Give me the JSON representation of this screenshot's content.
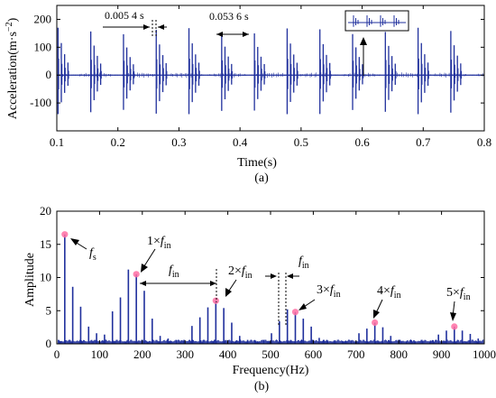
{
  "colors": {
    "signal": "#1f2f9c",
    "marker": "#ff6fa3",
    "axis": "#000000"
  },
  "panel_a": {
    "caption": "(a)",
    "annotations": {
      "interval_short": "0.005 4 s",
      "interval_long": "0.053 6 s"
    }
  },
  "panel_b": {
    "caption": "(b)",
    "annotations": {
      "fs_letter": "f",
      "fs_sub": "s",
      "h1_prefix": "1×",
      "h2_prefix": "2×",
      "h3_prefix": "3×",
      "h4_prefix": "4×",
      "h5_prefix": "5×",
      "f_letter": "f",
      "in_sub": "in"
    }
  },
  "chart_data": [
    {
      "type": "line",
      "xlabel": "Time(s)",
      "ylabel": "Acceleration(m·s",
      "ylabel_exp": "−2",
      "ylabel_close": ")",
      "xlim": [
        0.1,
        0.8
      ],
      "ylim": [
        -200,
        250
      ],
      "xticks": [
        "0.1",
        "0.2",
        "0.3",
        "0.4",
        "0.5",
        "0.6",
        "0.7",
        "0.8"
      ],
      "yticks": [
        "-100",
        "0",
        "100",
        "200"
      ],
      "ytick_values": [
        -100,
        0,
        100,
        200
      ],
      "impact_period_s": 0.0536,
      "sub_impact_spacing_s": 0.0054,
      "first_impact_s": 0.102,
      "impact_amplitudes": [
        170,
        115,
        75,
        45
      ],
      "impact_min": -140,
      "grid": false
    },
    {
      "type": "line",
      "xlabel": "Frequency(Hz)",
      "ylabel": "Amplitude",
      "xlim": [
        0,
        1000
      ],
      "ylim": [
        0,
        20
      ],
      "xticks": [
        "0",
        "100",
        "200",
        "300",
        "400",
        "500",
        "600",
        "700",
        "800",
        "900",
        "1000"
      ],
      "yticks": [
        "0",
        "5",
        "10",
        "15",
        "20"
      ],
      "ytick_values": [
        0,
        5,
        10,
        15,
        20
      ],
      "spectral_lines": {
        "x": [
          18.6,
          37.2,
          55.8,
          74.4,
          93,
          111.6,
          130.2,
          148.8,
          167.4,
          186,
          204.6,
          223.2,
          241.8,
          260.4,
          279,
          297.6,
          316.2,
          334.8,
          353.4,
          372,
          390.6,
          409.2,
          427.8,
          446.4,
          465,
          483.6,
          502.2,
          520.8,
          539.4,
          558,
          576.6,
          595.2,
          613.8,
          632.4,
          651,
          669.6,
          688.2,
          706.8,
          725.4,
          744,
          762.6,
          781.2,
          799.8,
          818.4,
          837,
          855.6,
          874.2,
          892.8,
          911.4,
          930,
          948.6,
          967.2,
          985.8
        ],
        "y": [
          16.5,
          8.6,
          5.6,
          2.6,
          1.6,
          1.4,
          4.9,
          7.0,
          11.2,
          10.5,
          8.0,
          3.8,
          1.2,
          0.8,
          0.6,
          0.6,
          2.7,
          4.0,
          5.5,
          6.5,
          5.4,
          3.2,
          1.2,
          0.6,
          0.5,
          0.6,
          1.6,
          3.4,
          5.2,
          4.8,
          3.8,
          2.6,
          0.9,
          0.4,
          0.3,
          0.4,
          0.5,
          1.6,
          2.3,
          3.2,
          2.5,
          1.2,
          0.6,
          0.3,
          0.3,
          0.4,
          0.5,
          1.4,
          2.0,
          2.6,
          2.0,
          1.5,
          0.8
        ]
      },
      "markers": {
        "x": [
          18.6,
          186,
          372,
          558,
          744,
          930
        ],
        "y": [
          16.5,
          10.5,
          6.5,
          4.8,
          3.2,
          2.6
        ]
      },
      "grid": false
    }
  ]
}
